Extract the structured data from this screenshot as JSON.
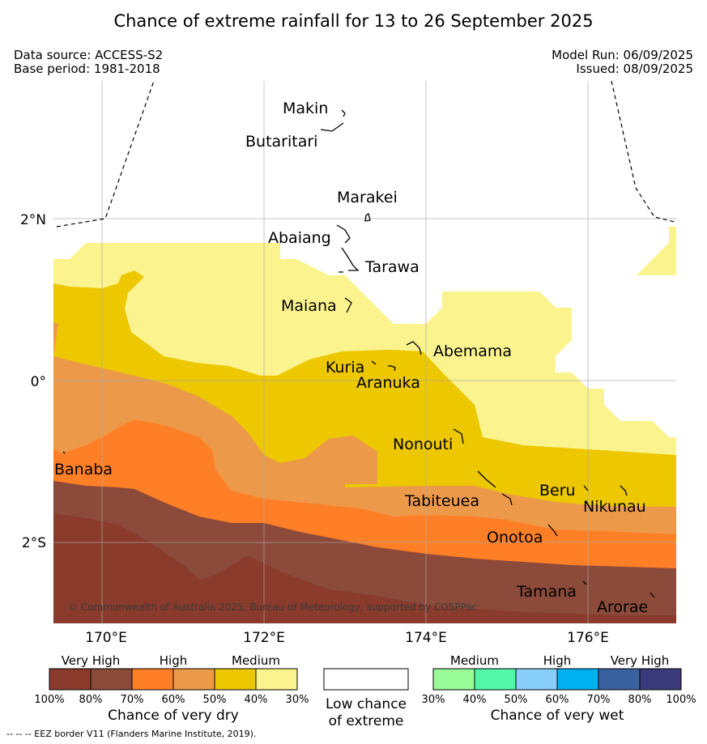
{
  "title": "Chance of extreme rainfall for 13 to 26 September 2025",
  "meta_left": [
    "Data source: ACCESS-S2",
    "Base period: 1981-2018"
  ],
  "meta_right": [
    "Model Run: 06/09/2025",
    "Issued: 08/09/2025"
  ],
  "map": {
    "lon_ticks": [
      "170°E",
      "172°E",
      "174°E",
      "176°E"
    ],
    "lat_ticks": [
      "2°N",
      "0°",
      "2°S"
    ],
    "places": [
      "Makin",
      "Butaritari",
      "Marakei",
      "Abaiang",
      "Tarawa",
      "Maiana",
      "Abemama",
      "Kuria",
      "Aranuka",
      "Nonouti",
      "Banaba",
      "Tabiteuea",
      "Beru",
      "Nikunau",
      "Onotoa",
      "Tamana",
      "Arorae"
    ],
    "copyright": "© Commonwealth of Australia 2025, Bureau of Meteorology, supported by COSPPac"
  },
  "legend_dry": {
    "levels": [
      "Very High",
      "High",
      "Medium"
    ],
    "colors": [
      "#8a3b2c",
      "#8b4a3a",
      "#ff7f27",
      "#ec9a4a",
      "#edc800",
      "#fbf48e"
    ],
    "ticks": [
      "100%",
      "80%",
      "70%",
      "60%",
      "50%",
      "40%",
      "30%"
    ],
    "caption": "Chance of very dry"
  },
  "legend_low": {
    "color": "#ffffff",
    "caption": [
      "Low chance",
      "of extreme"
    ]
  },
  "legend_wet": {
    "levels": [
      "Medium",
      "High",
      "Very High"
    ],
    "colors": [
      "#98fb98",
      "#53f8a9",
      "#87cefa",
      "#00b0f0",
      "#3a62a1",
      "#3b3b7b"
    ],
    "ticks": [
      "30%",
      "40%",
      "50%",
      "60%",
      "70%",
      "80%",
      "100%"
    ],
    "caption": "Chance of very wet"
  },
  "footnote": "-- -- -- EEZ border V11 (Flanders Marine Institute, 2019)."
}
